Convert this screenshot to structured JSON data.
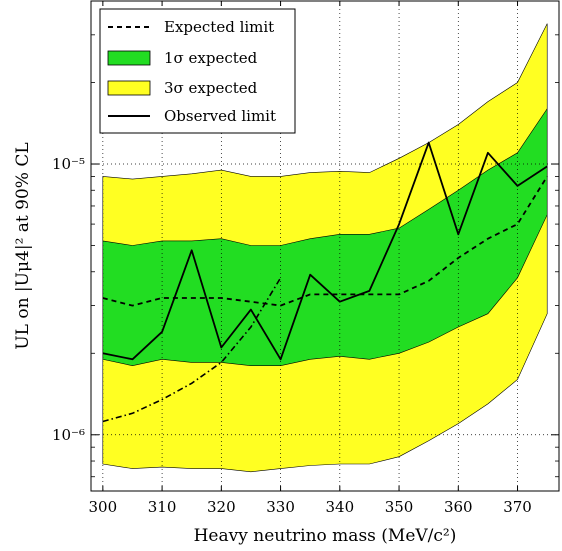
{
  "chart_data": {
    "type": "line",
    "xlabel": "Heavy neutrino mass (MeV/c²)",
    "ylabel": "UL on |Uμ4|² at 90% CL",
    "xlim": [
      298,
      377
    ],
    "ylim": [
      6.2e-07,
      4e-05
    ],
    "yscale": "log",
    "grid": true,
    "legend_position": "top-left",
    "x_ticks": [
      300,
      310,
      320,
      330,
      340,
      350,
      360,
      370
    ],
    "x_tick_labels": [
      "300",
      "310",
      "320",
      "330",
      "340",
      "350",
      "360",
      "370"
    ],
    "y_ticks": [
      1e-06,
      1e-05
    ],
    "y_tick_labels": [
      "10⁻⁶",
      "10⁻⁵"
    ],
    "colors": {
      "band_1sigma": "#22dd22",
      "band_3sigma": "#ffff22",
      "line": "#000000"
    },
    "legend": {
      "expected": "Expected limit",
      "one_sigma": "1σ expected",
      "three_sigma": "3σ expected",
      "observed": "Observed limit"
    },
    "x": [
      300,
      305,
      310,
      315,
      320,
      325,
      330,
      335,
      340,
      345,
      350,
      355,
      360,
      365,
      370,
      375
    ],
    "series": [
      {
        "name": "Expected limit",
        "style": "dashed",
        "values": [
          3.2e-06,
          3e-06,
          3.2e-06,
          3.2e-06,
          3.2e-06,
          3.1e-06,
          3e-06,
          3.3e-06,
          3.3e-06,
          3.3e-06,
          3.3e-06,
          3.7e-06,
          4.5e-06,
          5.3e-06,
          6e-06,
          9e-06
        ]
      },
      {
        "name": "1σ expected",
        "type": "band",
        "lower": [
          1.9e-06,
          1.8e-06,
          1.9e-06,
          1.85e-06,
          1.85e-06,
          1.8e-06,
          1.8e-06,
          1.9e-06,
          1.95e-06,
          1.9e-06,
          2e-06,
          2.2e-06,
          2.5e-06,
          2.8e-06,
          3.8e-06,
          6.5e-06
        ],
        "upper": [
          5.2e-06,
          5e-06,
          5.2e-06,
          5.2e-06,
          5.3e-06,
          5e-06,
          5e-06,
          5.3e-06,
          5.5e-06,
          5.5e-06,
          5.8e-06,
          6.8e-06,
          8e-06,
          9.5e-06,
          1.1e-05,
          1.6e-05
        ]
      },
      {
        "name": "3σ expected",
        "type": "band",
        "lower": [
          7.8e-07,
          7.5e-07,
          7.6e-07,
          7.5e-07,
          7.5e-07,
          7.3e-07,
          7.5e-07,
          7.7e-07,
          7.8e-07,
          7.8e-07,
          8.3e-07,
          9.5e-07,
          1.1e-06,
          1.3e-06,
          1.6e-06,
          2.8e-06
        ],
        "upper": [
          9e-06,
          8.8e-06,
          9e-06,
          9.2e-06,
          9.5e-06,
          9e-06,
          9e-06,
          9.3e-06,
          9.4e-06,
          9.3e-06,
          1.05e-05,
          1.2e-05,
          1.4e-05,
          1.7e-05,
          2e-05,
          3.3e-05
        ]
      },
      {
        "name": "Observed limit",
        "style": "solid",
        "values": [
          2e-06,
          1.9e-06,
          2.4e-06,
          4.8e-06,
          2.1e-06,
          2.9e-06,
          1.9e-06,
          3.9e-06,
          3.1e-06,
          3.4e-06,
          6e-06,
          1.2e-05,
          5.5e-06,
          1.1e-05,
          8.3e-06,
          9.8e-06
        ]
      },
      {
        "style": "dashdot",
        "values": [
          1.12e-06,
          1.2e-06,
          1.35e-06,
          1.55e-06,
          1.85e-06,
          2.5e-06,
          3.8e-06,
          null,
          null,
          null,
          null,
          null,
          null,
          null,
          null,
          null
        ]
      }
    ]
  }
}
